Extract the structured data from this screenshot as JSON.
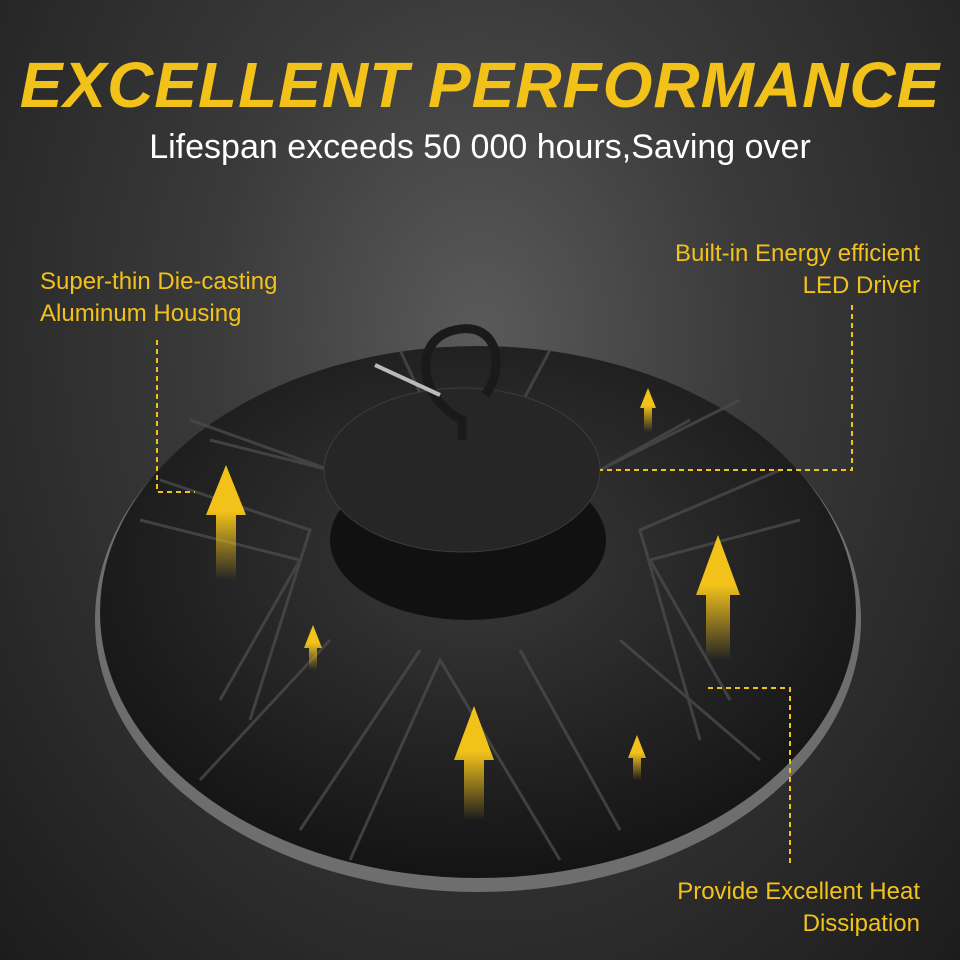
{
  "title": "EXCELLENT PERFORMANCE",
  "subtitle": "Lifespan exceeds 50 000 hours,Saving over",
  "callouts": [
    {
      "lines": [
        "Super-thin Die-casting",
        "Aluminum Housing"
      ]
    },
    {
      "lines": [
        "Built-in Energy efficient",
        "LED Driver"
      ]
    },
    {
      "lines": [
        "Provide Excellent Heat",
        "Dissipation"
      ]
    }
  ],
  "colors": {
    "accent": "#f2c21b",
    "text": "#ffffff"
  }
}
